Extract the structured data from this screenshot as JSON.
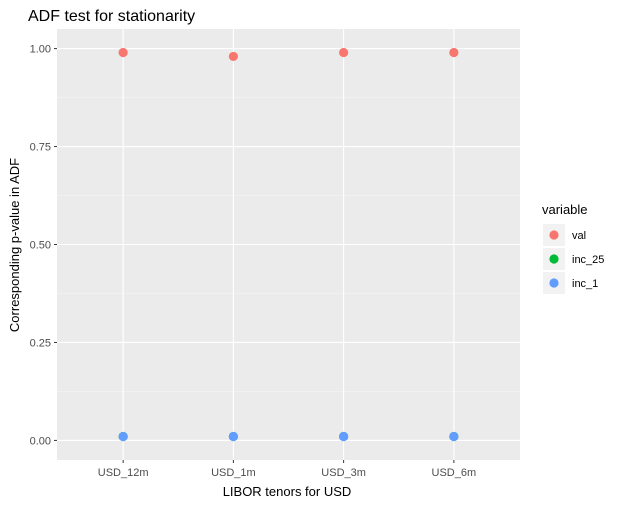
{
  "chart_data": {
    "type": "scatter",
    "title": "ADF test for stationarity",
    "xlabel": "LIBOR tenors for USD",
    "ylabel": "Corresponding p-value in ADF",
    "categories": [
      "USD_12m",
      "USD_1m",
      "USD_3m",
      "USD_6m"
    ],
    "ylim": [
      -0.05,
      1.05
    ],
    "yticks": [
      0.0,
      0.25,
      0.5,
      0.75,
      1.0
    ],
    "ytick_labels": [
      "0.00",
      "0.25",
      "0.50",
      "0.75",
      "1.00"
    ],
    "grid": true,
    "legend": {
      "title": "variable",
      "position": "right"
    },
    "series": [
      {
        "name": "val",
        "color": "#F8766D",
        "values": [
          0.99,
          0.98,
          0.99,
          0.99
        ]
      },
      {
        "name": "inc_25",
        "color": "#00BA38",
        "values": [
          0.01,
          0.01,
          0.01,
          0.01
        ]
      },
      {
        "name": "inc_1",
        "color": "#619CFF",
        "values": [
          0.01,
          0.01,
          0.01,
          0.01
        ]
      }
    ],
    "colors": {
      "panel": "#EBEBEB",
      "grid_major": "#FFFFFF",
      "grid_minor": "#F5F5F5",
      "text": "#000000",
      "tick_text": "#4D4D4D"
    }
  }
}
